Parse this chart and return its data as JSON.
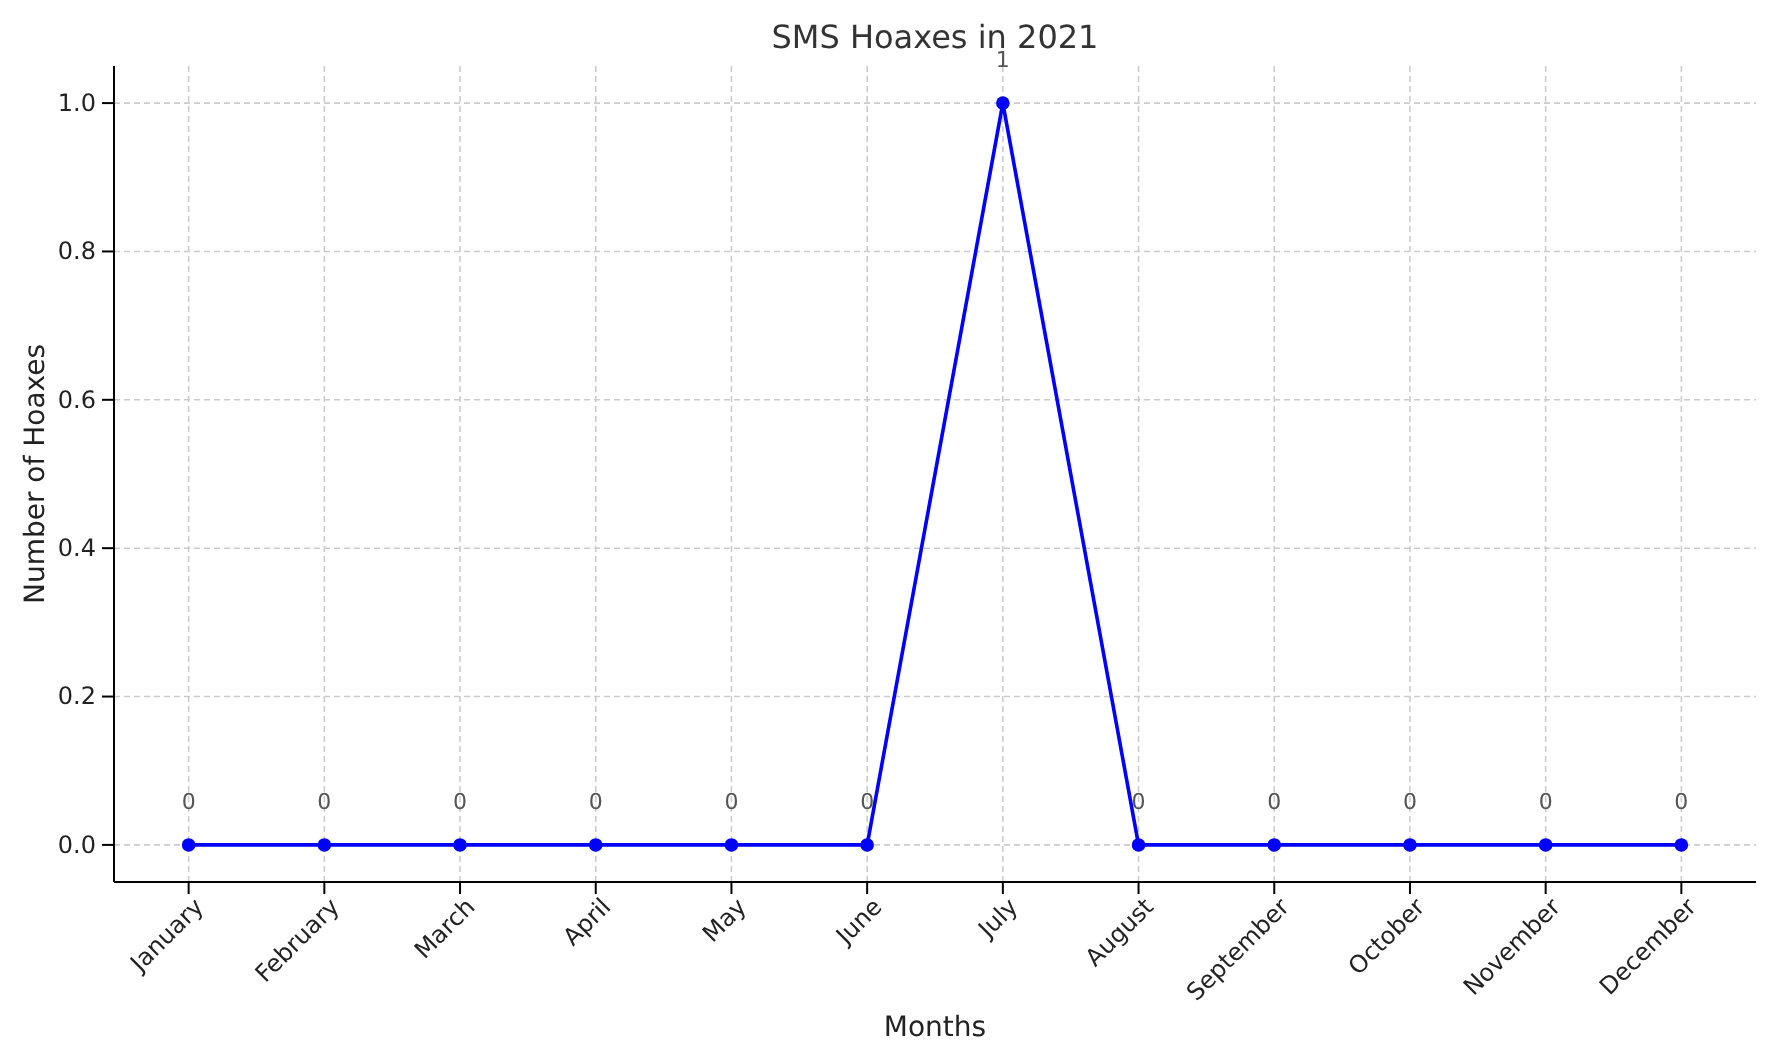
{
  "chart_data": {
    "type": "line",
    "title": "SMS Hoaxes in 2021",
    "xlabel": "Months",
    "ylabel": "Number of Hoaxes",
    "categories": [
      "January",
      "February",
      "March",
      "April",
      "May",
      "June",
      "July",
      "August",
      "September",
      "October",
      "November",
      "December"
    ],
    "series": [
      {
        "color": "#0000ff",
        "values": [
          0,
          0,
          0,
          0,
          0,
          0,
          1,
          0,
          0,
          0,
          0,
          0
        ]
      }
    ],
    "ylim": [
      -0.05,
      1.05
    ],
    "yticks": [
      {
        "value": 0,
        "label": "0.0"
      },
      {
        "value": 0.2,
        "label": "0.2"
      },
      {
        "value": 0.4,
        "label": "0.4"
      },
      {
        "value": 0.6,
        "label": "0.6"
      },
      {
        "value": 0.8,
        "label": "0.8"
      },
      {
        "value": 1,
        "label": "1.0"
      }
    ],
    "grid": true,
    "marker": "circle",
    "line_style": "solid",
    "data_labels": true
  }
}
